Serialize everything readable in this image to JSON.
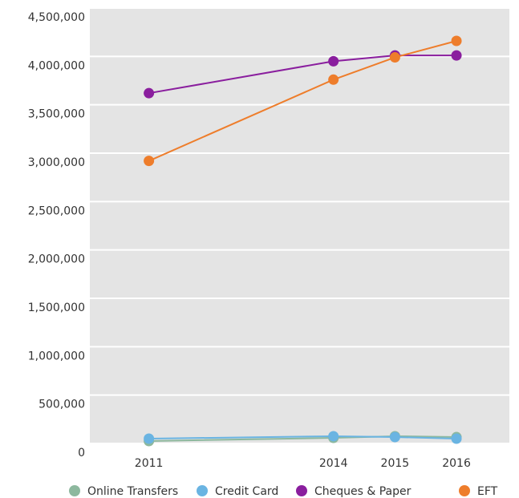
{
  "chart_data": {
    "type": "line",
    "x": [
      2011,
      2014,
      2015,
      2016
    ],
    "series": [
      {
        "name": "Online Transfers",
        "color": "#8db89e",
        "values": [
          25000,
          58000,
          75000,
          66000
        ]
      },
      {
        "name": "Credit Card",
        "color": "#6ab4e2",
        "values": [
          50000,
          75000,
          66000,
          50000
        ]
      },
      {
        "name": "Cheques & Paper",
        "color": "#8a1e9e",
        "values": [
          3620000,
          3950000,
          4010000,
          4010000
        ]
      },
      {
        "name": "EFT",
        "color": "#ee7d2b",
        "values": [
          2920000,
          3760000,
          3990000,
          4160000
        ]
      }
    ],
    "xlim": [
      2010.04,
      2016.86
    ],
    "xticks": [
      2011,
      2014,
      2015,
      2016
    ],
    "ylim": [
      0,
      4500000
    ],
    "yticks": [
      0,
      {
        "value": 500000,
        "label": "500,000"
      },
      {
        "value": 1000000,
        "label": "1,000,000"
      },
      {
        "value": 1500000,
        "label": "1,500,000"
      },
      {
        "value": 2000000,
        "label": "2,000,000"
      },
      {
        "value": 2500000,
        "label": "2,500,000"
      },
      {
        "value": 3000000,
        "label": "3,000,000"
      },
      {
        "value": 3500000,
        "label": "3,500,000"
      },
      {
        "value": 4000000,
        "label": "4,000,000"
      },
      {
        "value": 4500000,
        "label": "4,500,000"
      }
    ],
    "grid": true,
    "legend": "bottom"
  }
}
